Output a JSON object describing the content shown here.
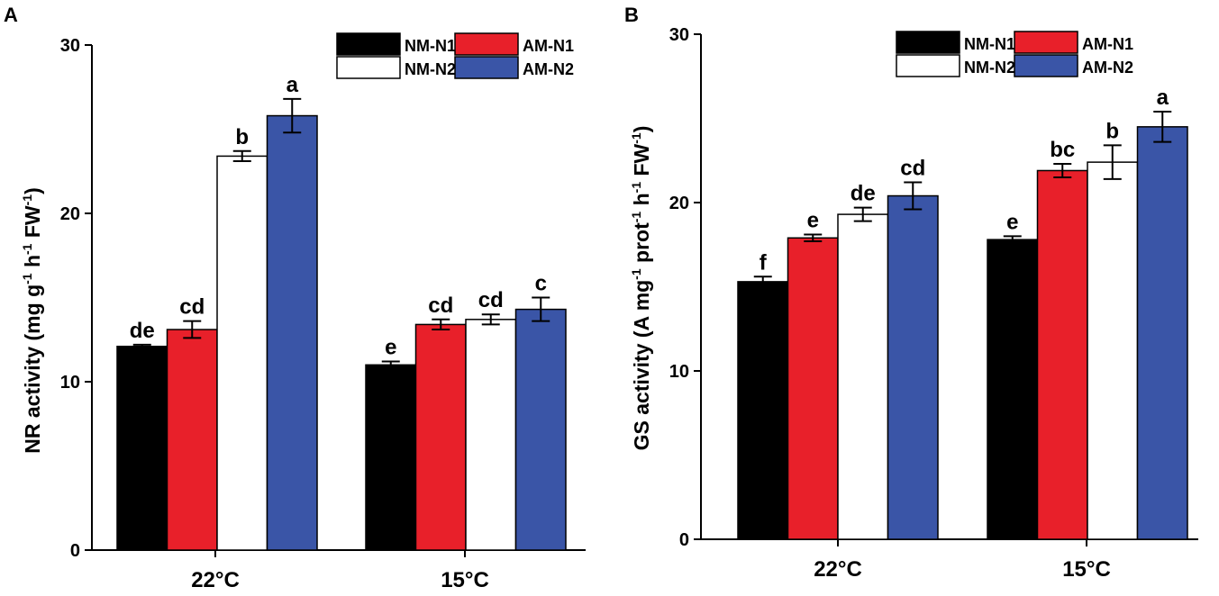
{
  "chart_data": [
    {
      "panel_label": "A",
      "type": "bar",
      "categories": [
        "22°C",
        "15°C"
      ],
      "series": [
        {
          "name": "NM-N1",
          "color": "#000000",
          "values": [
            12.1,
            11.0
          ],
          "errors": [
            0.1,
            0.2
          ],
          "letters": [
            "de",
            "e"
          ]
        },
        {
          "name": "AM-N1",
          "color": "#e8202a",
          "values": [
            13.1,
            13.4
          ],
          "errors": [
            0.5,
            0.3
          ],
          "letters": [
            "cd",
            "cd"
          ]
        },
        {
          "name": "NM-N2",
          "color": "#ffffff",
          "values": [
            23.4,
            13.7
          ],
          "errors": [
            0.3,
            0.3
          ],
          "letters": [
            "b",
            "cd"
          ]
        },
        {
          "name": "AM-N2",
          "color": "#3a55a7",
          "values": [
            25.8,
            14.3
          ],
          "errors": [
            1.0,
            0.7
          ],
          "letters": [
            "a",
            "c"
          ]
        }
      ],
      "ylabel_prefix": "NR activity (mg g",
      "ylabel_sup1": "-1",
      "ylabel_mid": " h",
      "ylabel_sup2": "-1",
      "ylabel_mid2": " FW",
      "ylabel_sup3": "-1",
      "ylabel_suffix": ")",
      "ylim": [
        0,
        30
      ],
      "yticks": [
        0,
        10,
        20,
        30
      ],
      "ytick_labels": [
        "0",
        "10",
        "20",
        "30"
      ],
      "legend_position": "top-right"
    },
    {
      "panel_label": "B",
      "type": "bar",
      "categories": [
        "22°C",
        "15°C"
      ],
      "series": [
        {
          "name": "NM-N1",
          "color": "#000000",
          "values": [
            15.3,
            17.8
          ],
          "errors": [
            0.3,
            0.2
          ],
          "letters": [
            "f",
            "e"
          ]
        },
        {
          "name": "AM-N1",
          "color": "#e8202a",
          "values": [
            17.9,
            21.9
          ],
          "errors": [
            0.2,
            0.4
          ],
          "letters": [
            "e",
            "bc"
          ]
        },
        {
          "name": "NM-N2",
          "color": "#ffffff",
          "values": [
            19.3,
            22.4
          ],
          "errors": [
            0.4,
            1.0
          ],
          "letters": [
            "de",
            "b"
          ]
        },
        {
          "name": "AM-N2",
          "color": "#3a55a7",
          "values": [
            20.4,
            24.5
          ],
          "errors": [
            0.8,
            0.9
          ],
          "letters": [
            "cd",
            "a"
          ]
        }
      ],
      "ylabel_prefix": "GS activity (A mg",
      "ylabel_sup1": "-1",
      "ylabel_mid": " prot",
      "ylabel_sup2": "-1",
      "ylabel_mid2": " h",
      "ylabel_sup3": "-1",
      "ylabel_mid3": " FW",
      "ylabel_sup4": "-1",
      "ylabel_suffix": ")",
      "ylim": [
        0,
        30
      ],
      "yticks": [
        0,
        10,
        20,
        30
      ],
      "ytick_labels": [
        "0",
        "10",
        "20",
        "30"
      ],
      "legend_position": "top-right"
    }
  ]
}
